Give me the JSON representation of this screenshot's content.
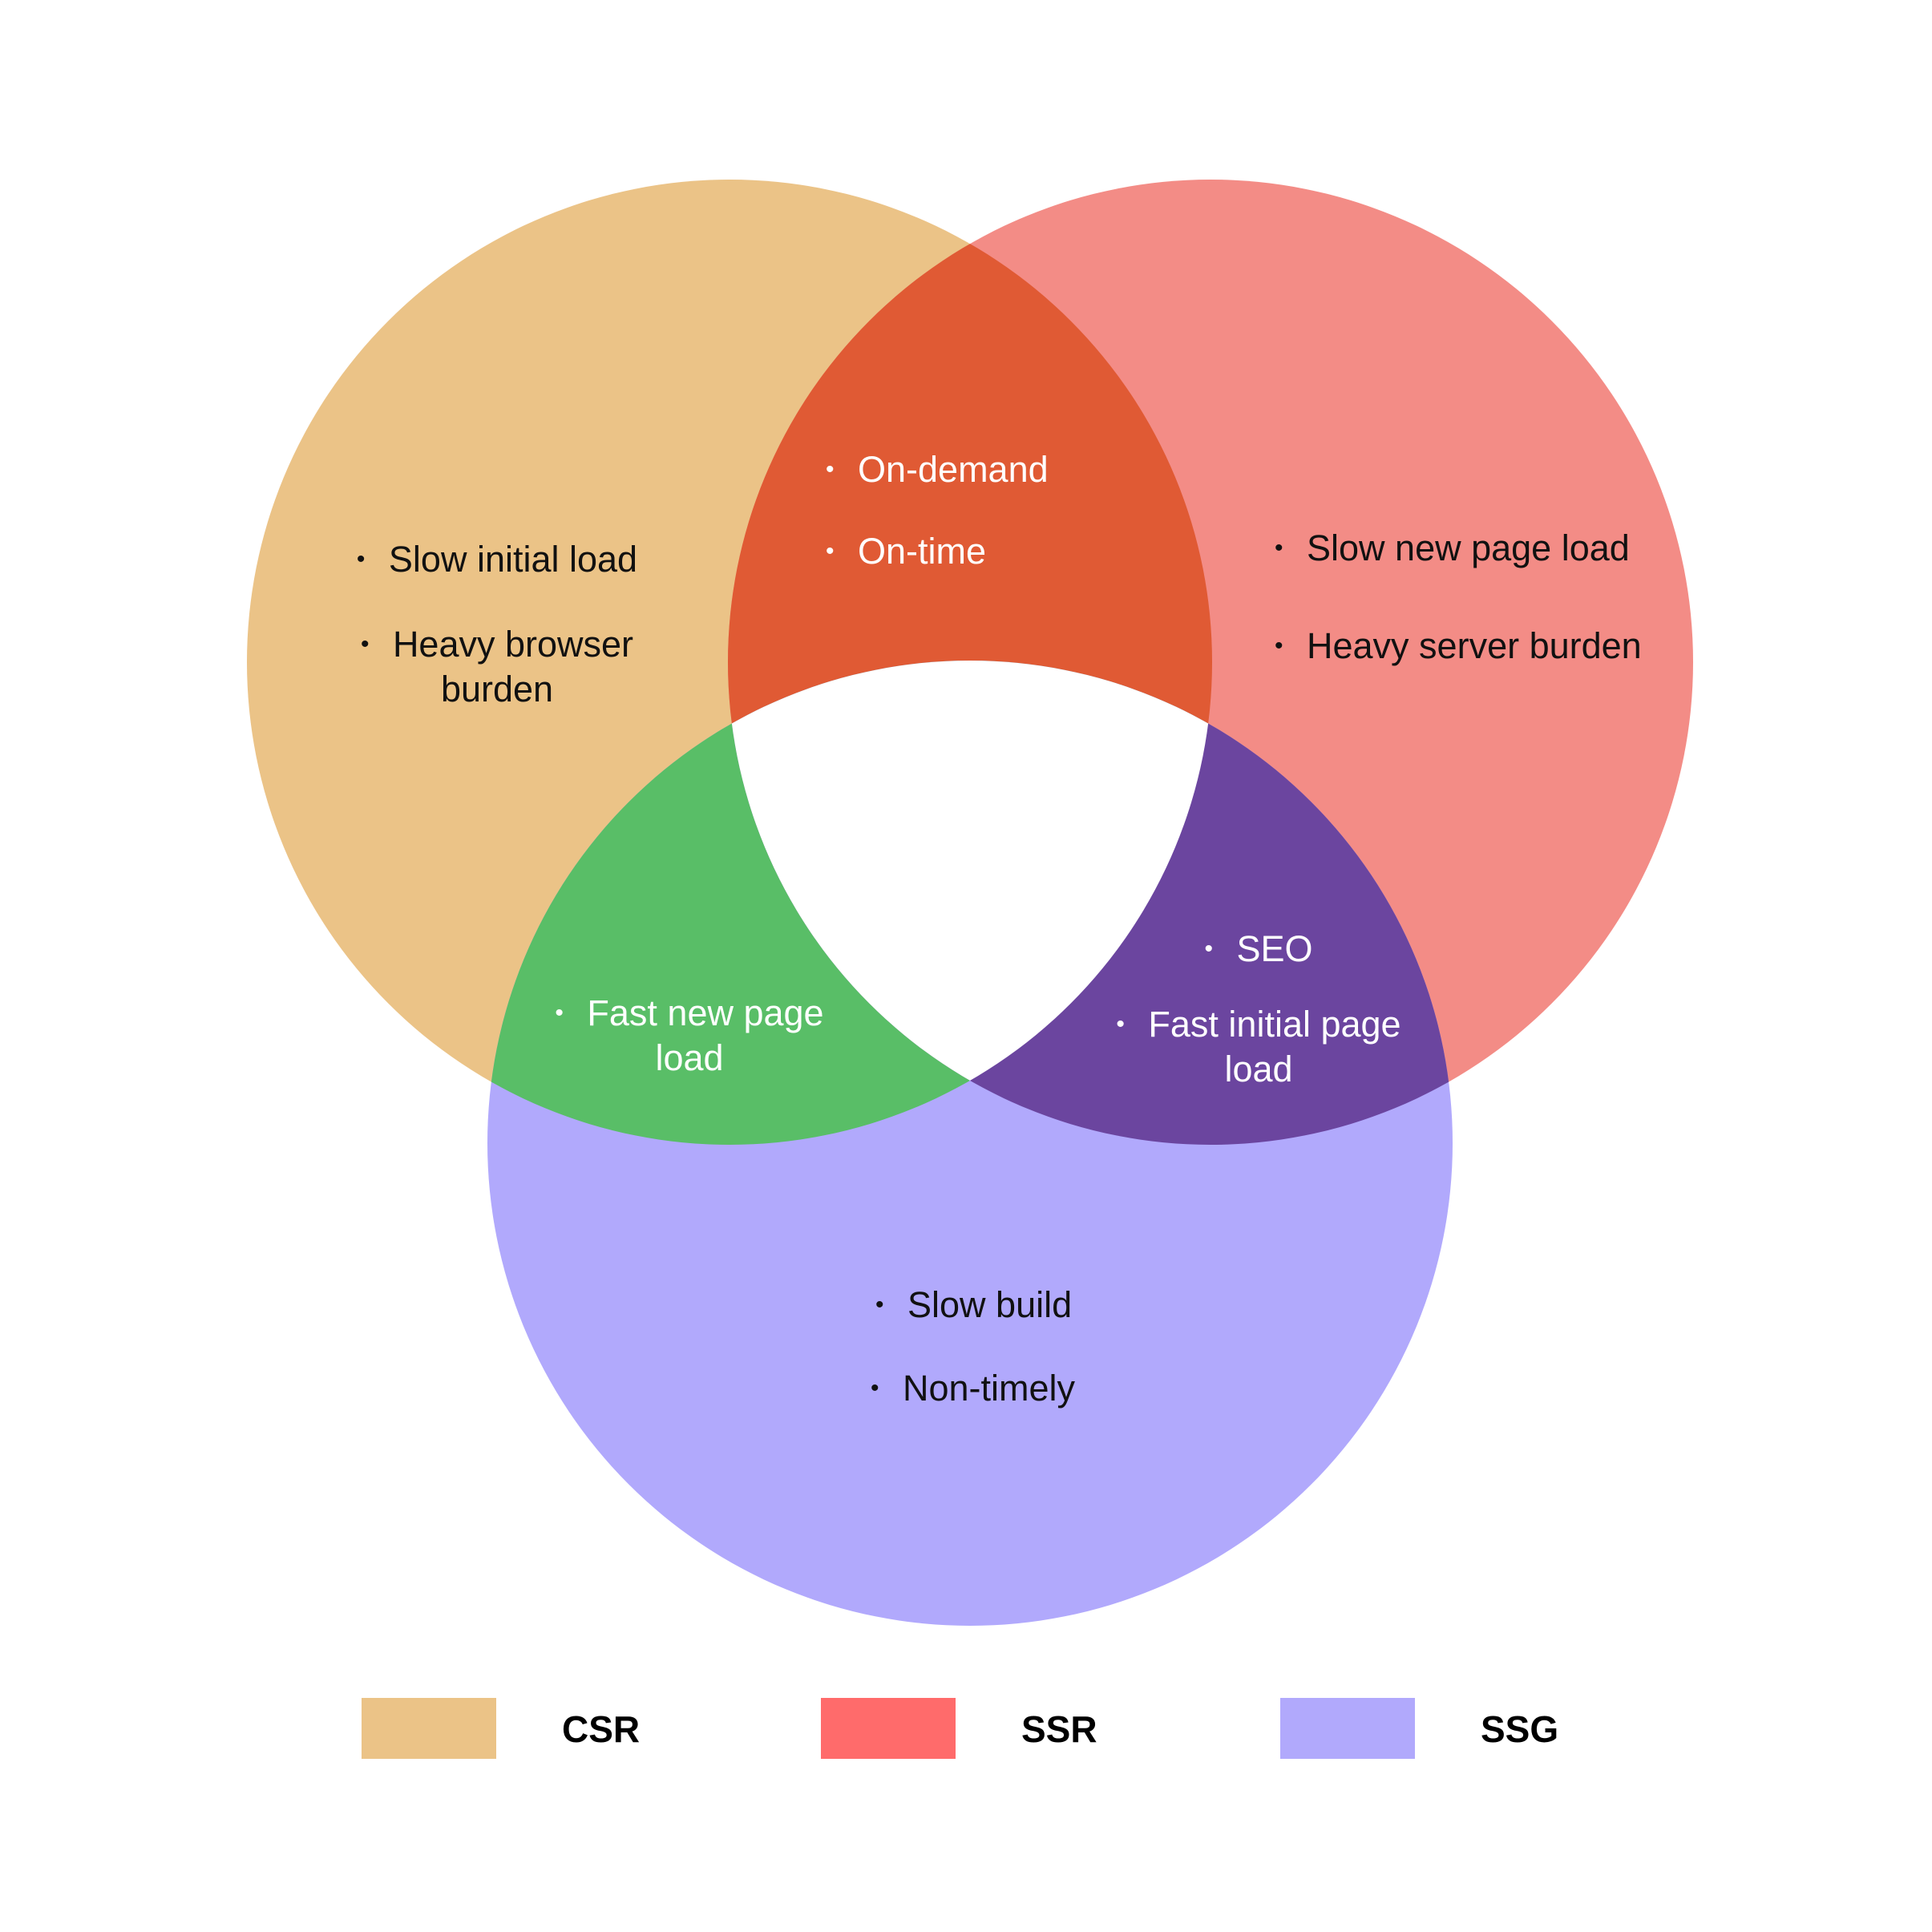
{
  "colors": {
    "csr": "#EBC387",
    "ssr": "#F38C86",
    "ssg": "#B1A9FC",
    "csr_ssr": "#E05A34",
    "csr_ssg": "#59BE67",
    "ssr_ssg": "#6B459F",
    "center": "#FFFFFF",
    "legend_ssr": "#FF6B6B"
  },
  "regions": {
    "csr_only": {
      "items": [
        "Slow initial load",
        "Heavy browser burden"
      ]
    },
    "ssr_only": {
      "items": [
        "Slow new page load",
        "Heavy server burden"
      ]
    },
    "ssg_only": {
      "items": [
        "Slow build",
        "Non-timely"
      ]
    },
    "csr_ssr": {
      "items": [
        "On-demand",
        "On-time"
      ]
    },
    "csr_ssg": {
      "items": [
        "Fast new page load"
      ]
    },
    "ssr_ssg": {
      "items": [
        "SEO",
        "Fast initial page load"
      ]
    }
  },
  "legend": [
    {
      "label": "CSR",
      "color": "#EBC387"
    },
    {
      "label": "SSR",
      "color": "#FF6B6B"
    },
    {
      "label": "SSG",
      "color": "#B1A9FC"
    }
  ]
}
